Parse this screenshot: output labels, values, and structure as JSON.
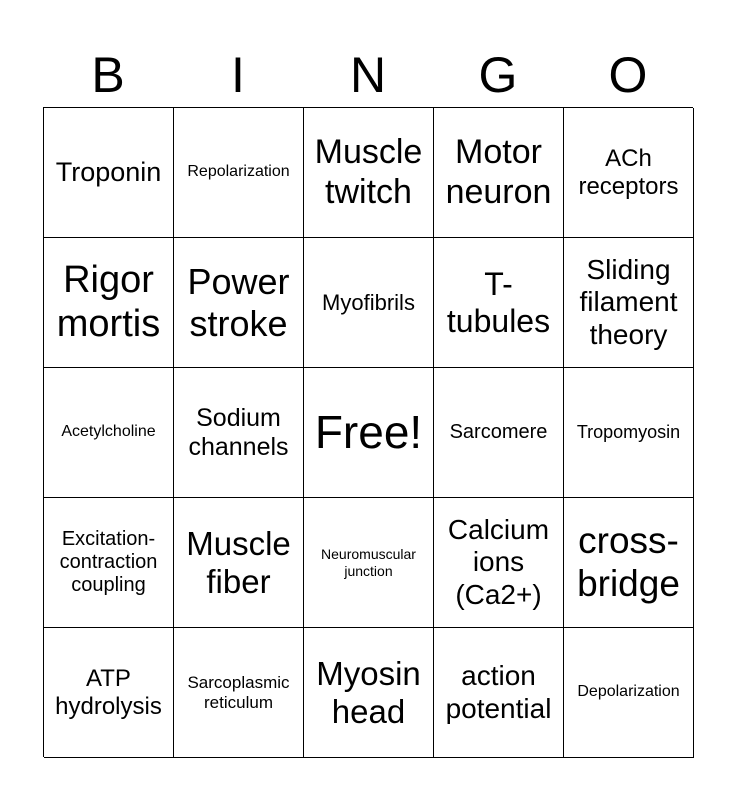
{
  "header": [
    "B",
    "I",
    "N",
    "G",
    "O"
  ],
  "cells": [
    "Troponin",
    "Repolarization",
    "Muscle twitch",
    "Motor neuron",
    "ACh receptors",
    "Rigor mortis",
    "Power stroke",
    "Myofibrils",
    "T-tubules",
    "Sliding filament theory",
    "Acetylcholine",
    "Sodium channels",
    "Free!",
    "Sarcomere",
    "Tropomyosin",
    "Excitation-contraction coupling",
    "Muscle fiber",
    "Neuromuscular junction",
    "Calcium ions (Ca2+)",
    "cross-bridge",
    "ATP hydrolysis",
    "Sarcoplasmic reticulum",
    "Myosin head",
    "action potential",
    "Depolarization"
  ]
}
